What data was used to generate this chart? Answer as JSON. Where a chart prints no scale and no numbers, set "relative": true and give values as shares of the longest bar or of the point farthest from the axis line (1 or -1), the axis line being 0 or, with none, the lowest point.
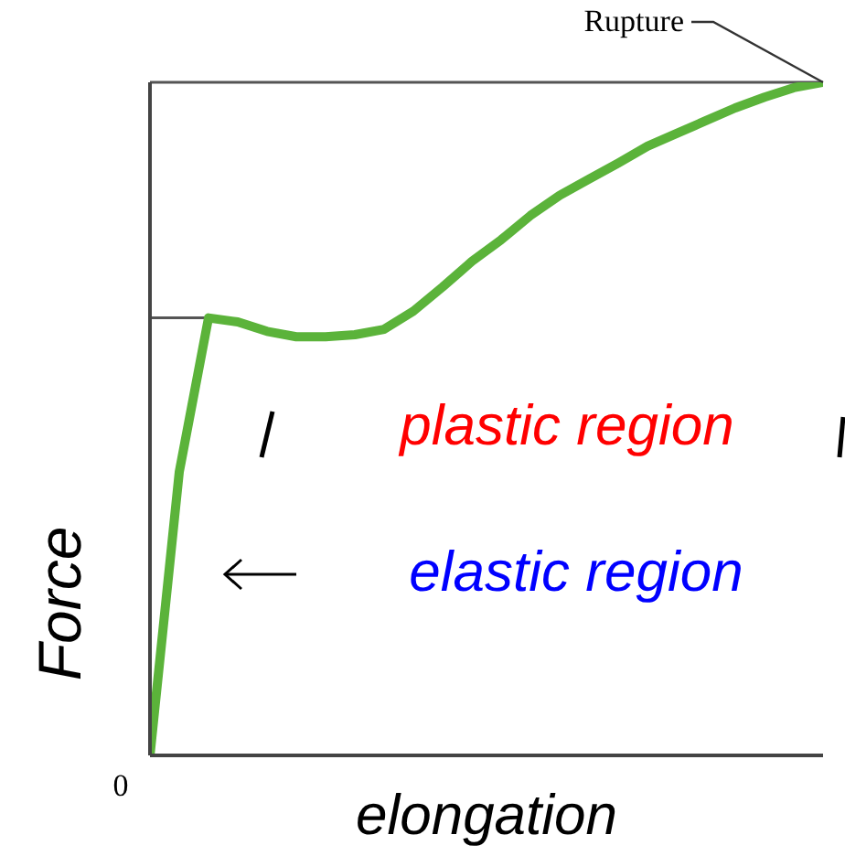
{
  "chart_data": {
    "type": "line",
    "relative": true,
    "xlabel": "elongation",
    "ylabel": "Force",
    "categories": [
      null,
      null,
      null,
      null,
      null,
      null,
      null,
      null,
      null,
      null,
      null,
      null,
      null,
      null,
      null,
      null,
      null,
      null,
      null,
      null,
      null,
      null,
      null,
      null
    ],
    "series": [
      {
        "color": "#5bb33a",
        "values": [
          0,
          0.421,
          0.65,
          0.644,
          0.63,
          0.622,
          0.622,
          0.625,
          0.633,
          0.66,
          0.696,
          0.734,
          0.766,
          0.802,
          0.832,
          0.856,
          0.88,
          0.905,
          0.924,
          0.943,
          0.962,
          0.978,
          0.992,
          1
        ]
      }
    ],
    "ref_lines": [
      {
        "axis": "y",
        "value": 1,
        "color": "#555555"
      },
      {
        "axis": "y",
        "value": 0.65,
        "color": "#555555"
      }
    ],
    "annotations": [
      "Rupture",
      "0",
      "plastic region",
      "elastic region"
    ],
    "marker": "none",
    "line_style": "solid"
  }
}
